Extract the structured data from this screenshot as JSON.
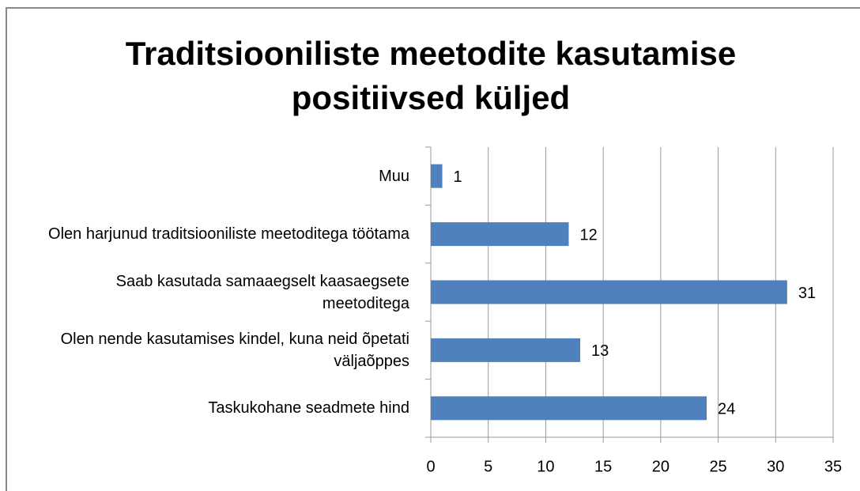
{
  "chart_data": {
    "type": "barh",
    "title": "Traditsiooniliste meetodite kasutamise positiivsed küljed",
    "categories": [
      "Muu",
      "Olen harjunud traditsiooniliste meetoditega töötama",
      "Saab kasutada samaaegselt kaasaegsete meetoditega",
      "Olen nende kasutamises kindel, kuna neid õpetati väljaõppes",
      "Taskukohane seadmete hind"
    ],
    "values": [
      1,
      12,
      31,
      13,
      24
    ],
    "color": "#4f81bd",
    "xlim": [
      0,
      35
    ],
    "xticks": [
      0,
      5,
      10,
      15,
      20,
      25,
      30,
      35
    ],
    "grid": true
  }
}
